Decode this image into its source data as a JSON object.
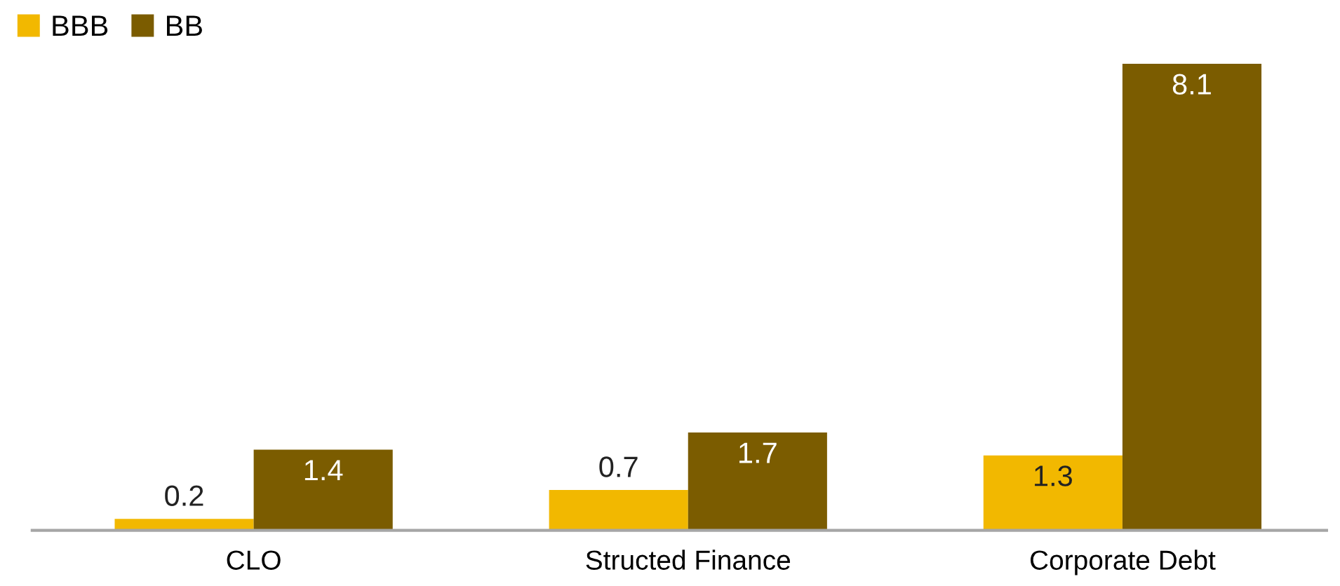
{
  "chart_data": {
    "type": "bar",
    "categories": [
      "CLO",
      "Structed Finance",
      "Corporate Debt"
    ],
    "series": [
      {
        "name": "BBB",
        "color": "#f2b800",
        "values": [
          0.2,
          0.7,
          1.3
        ]
      },
      {
        "name": "BB",
        "color": "#7b5c00",
        "values": [
          1.4,
          1.7,
          8.1
        ]
      }
    ],
    "data_labels": true,
    "legend": "top left",
    "grid": false
  }
}
